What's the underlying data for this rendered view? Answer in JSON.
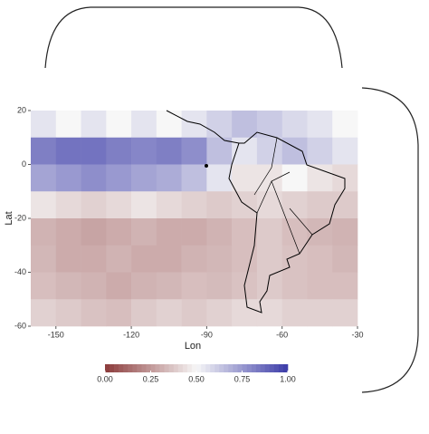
{
  "chart_data": {
    "type": "heatmap",
    "xlabel": "Lon",
    "ylabel": "Lat",
    "x": [
      -155,
      -145,
      -135,
      -125,
      -115,
      -105,
      -95,
      -85,
      -75,
      -65,
      -55,
      -45,
      -35
    ],
    "y": [
      15,
      5,
      -5,
      -15,
      -25,
      -35,
      -45,
      -55
    ],
    "z": [
      [
        0.55,
        0.5,
        0.55,
        0.5,
        0.55,
        0.5,
        0.55,
        0.6,
        0.65,
        0.62,
        0.58,
        0.55,
        0.5
      ],
      [
        0.82,
        0.85,
        0.85,
        0.82,
        0.8,
        0.82,
        0.78,
        0.65,
        0.55,
        0.6,
        0.65,
        0.6,
        0.55
      ],
      [
        0.72,
        0.75,
        0.78,
        0.75,
        0.72,
        0.7,
        0.65,
        0.55,
        0.45,
        0.45,
        0.5,
        0.45,
        0.42
      ],
      [
        0.45,
        0.42,
        0.4,
        0.42,
        0.45,
        0.42,
        0.4,
        0.38,
        0.4,
        0.42,
        0.4,
        0.38,
        0.38
      ],
      [
        0.32,
        0.3,
        0.28,
        0.3,
        0.32,
        0.3,
        0.3,
        0.32,
        0.35,
        0.38,
        0.35,
        0.33,
        0.32
      ],
      [
        0.33,
        0.3,
        0.3,
        0.32,
        0.3,
        0.3,
        0.32,
        0.33,
        0.35,
        0.38,
        0.36,
        0.35,
        0.33
      ],
      [
        0.35,
        0.33,
        0.32,
        0.3,
        0.32,
        0.33,
        0.35,
        0.34,
        0.36,
        0.38,
        0.36,
        0.35,
        0.35
      ],
      [
        0.4,
        0.38,
        0.36,
        0.35,
        0.38,
        0.4,
        0.38,
        0.4,
        0.42,
        0.42,
        0.4,
        0.4,
        0.4
      ]
    ],
    "xlim": [
      -160,
      -30
    ],
    "xticks": [
      -150,
      -120,
      -90,
      -60,
      -30
    ],
    "ylim": [
      -60,
      20
    ],
    "yticks": [
      -60,
      -40,
      -20,
      0,
      20
    ],
    "colors": [
      "#8b3a3a",
      "#f7f7f7",
      "#3b3ba8"
    ],
    "zlim": [
      0,
      1
    ],
    "zticks": [
      {
        "value": 0,
        "label": "0.00"
      },
      {
        "value": 0.25,
        "label": "0.25"
      },
      {
        "value": 0.5,
        "label": "0.50"
      },
      {
        "value": 0.75,
        "label": "0.75"
      },
      {
        "value": 1,
        "label": "1.00"
      }
    ]
  }
}
